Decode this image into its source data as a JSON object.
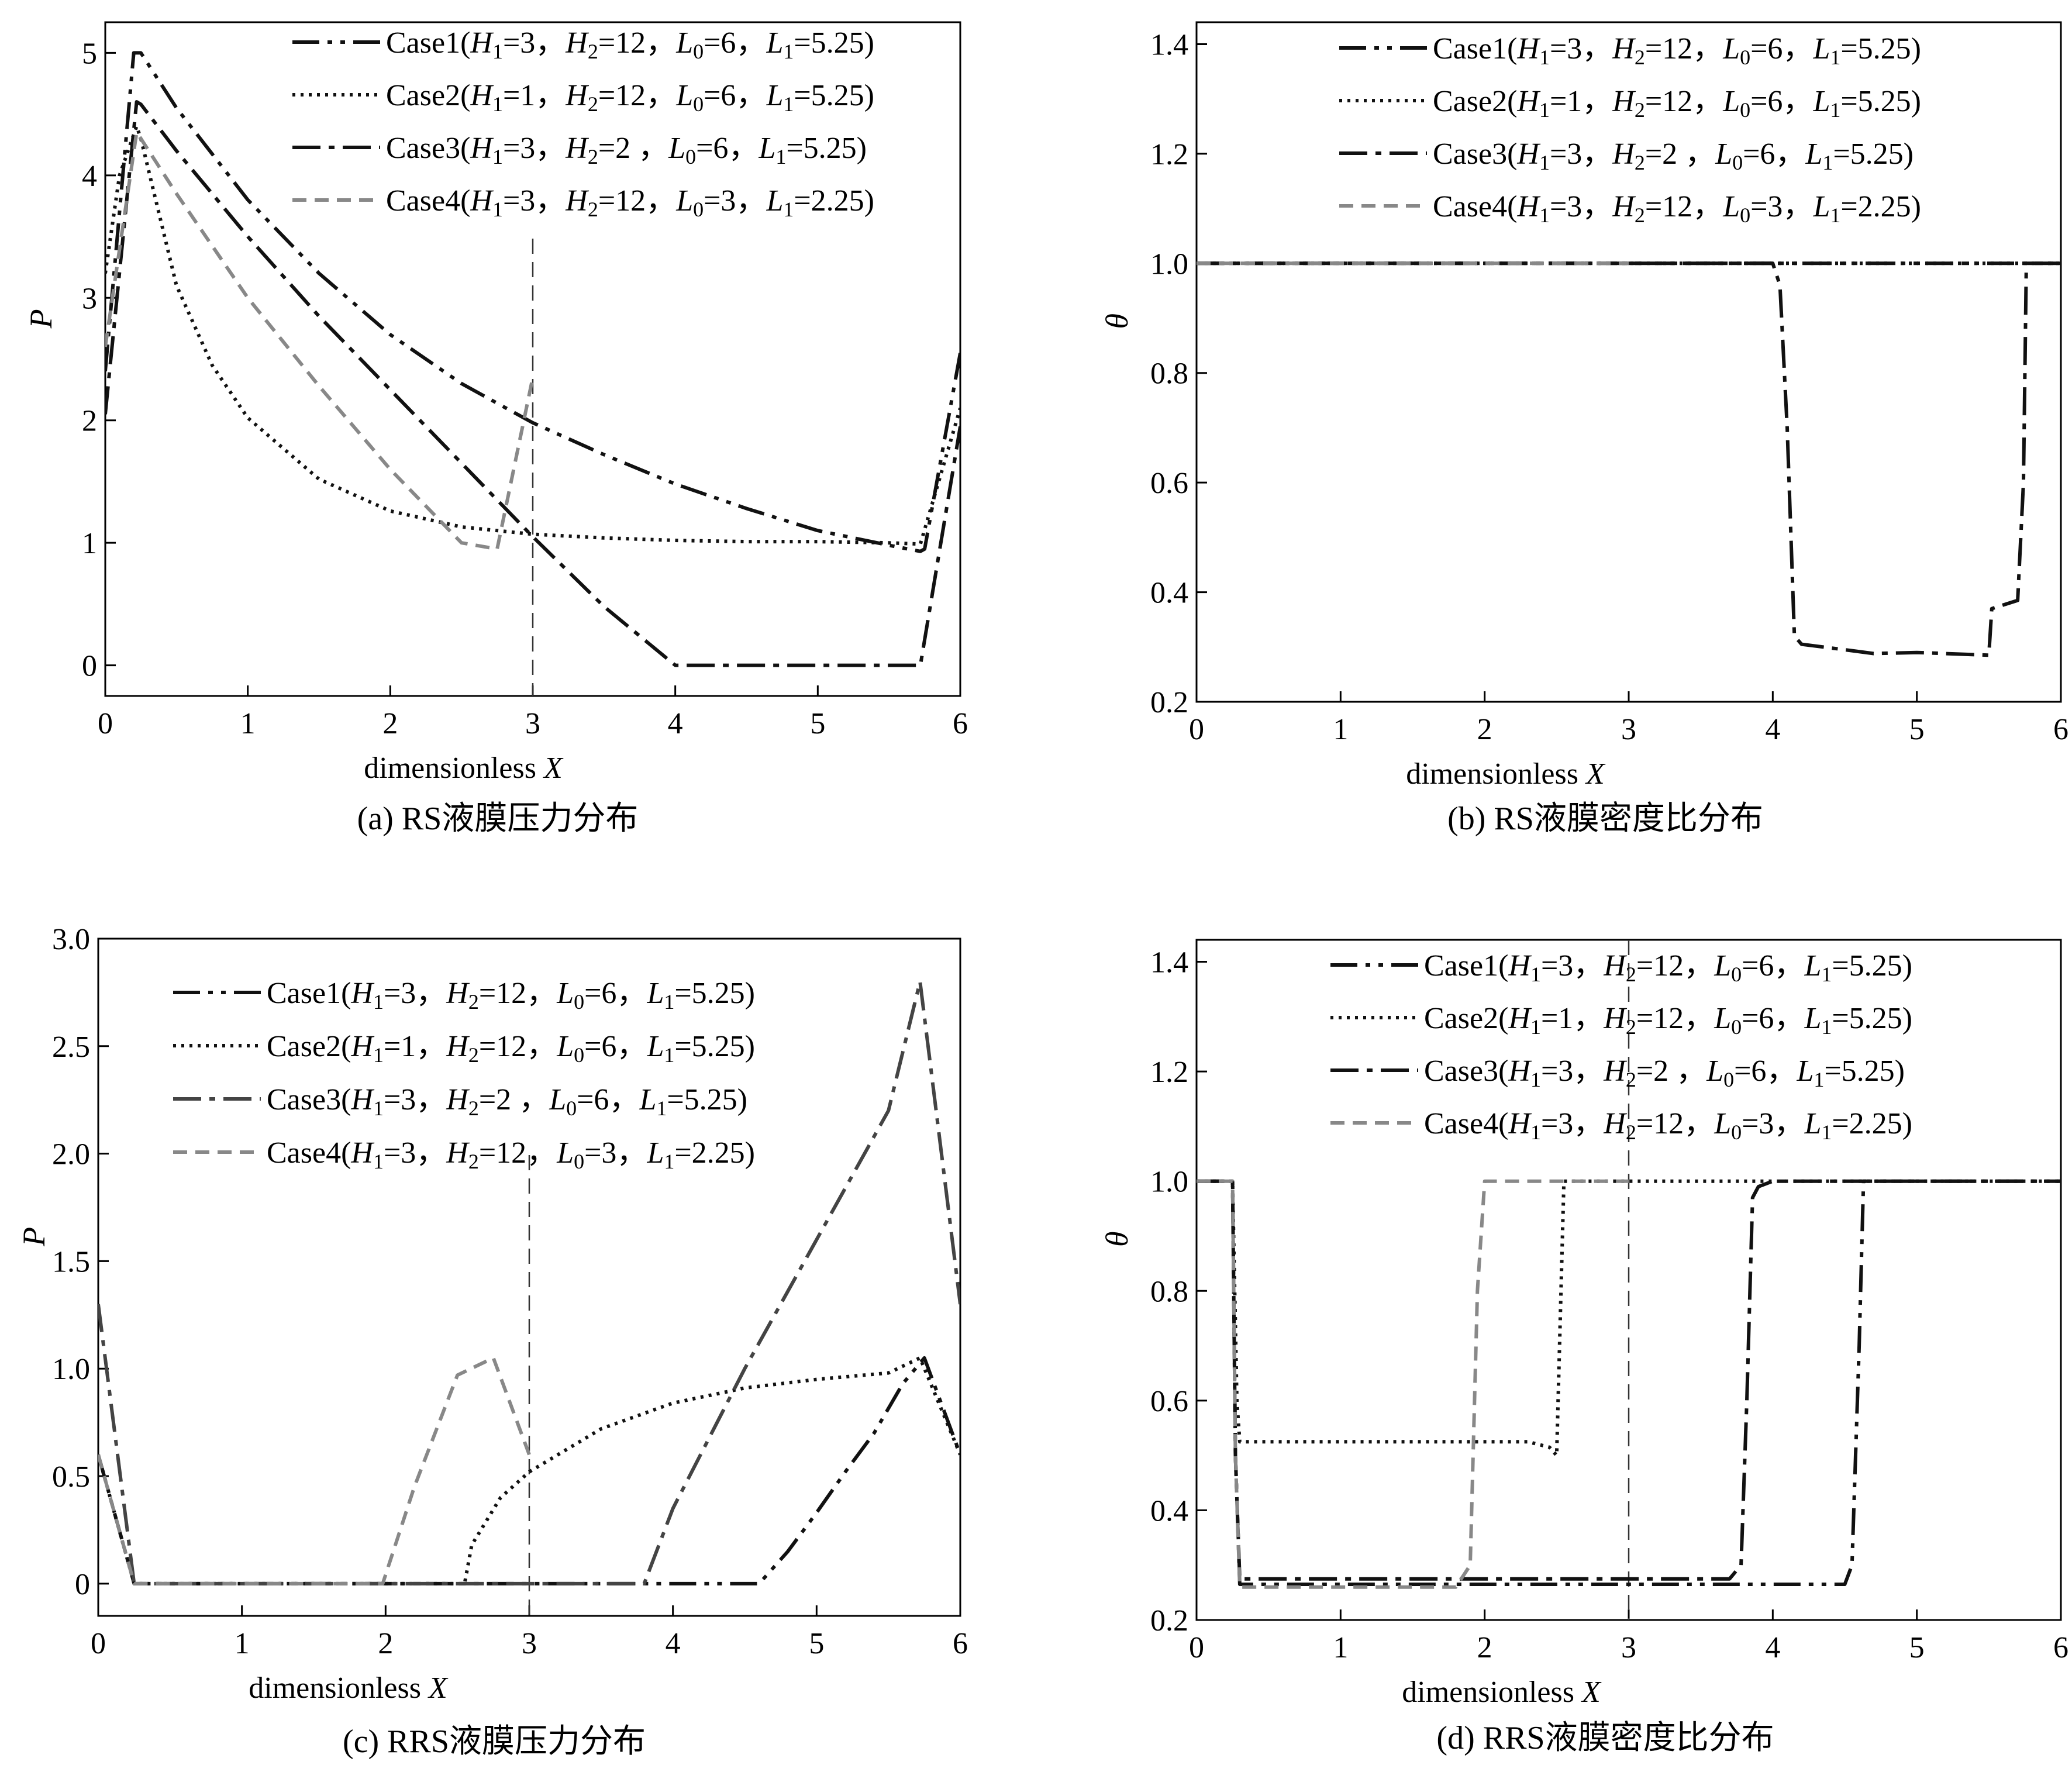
{
  "chart_data": [
    {
      "id": "a",
      "type": "line",
      "caption": "(a) RS液膜压力分布",
      "xlabel": "dimensionless X",
      "ylabel": "P",
      "xlim": [
        0,
        6
      ],
      "ylim": [
        -0.25,
        5.25
      ],
      "xticks": [
        0,
        1,
        2,
        3,
        4,
        5,
        6
      ],
      "yticks": [
        0,
        1,
        2,
        3,
        4,
        5
      ],
      "tick_labels_x": [
        "0",
        "1",
        "2",
        "3",
        "4",
        "5",
        "6"
      ],
      "tick_labels_y": [
        "0",
        "1",
        "2",
        "3",
        "4",
        "5"
      ],
      "vline": 3,
      "legend_position": "top-right",
      "series": [
        {
          "name": "Case1(H1=3，H2=12，L0=6，L1=5.25)",
          "name_rich": [
            "Case1(",
            "H",
            "1",
            "=3，",
            "H",
            "2",
            "=12，",
            "L",
            "0",
            "=6，",
            "L",
            "1",
            "=5.25)"
          ],
          "style": "dashdotdot",
          "color": "#111111",
          "x": [
            0,
            0.2,
            0.25,
            0.5,
            1.0,
            1.5,
            2.0,
            2.5,
            3.0,
            3.5,
            4.0,
            4.5,
            5.0,
            5.5,
            5.72,
            5.75,
            6.0
          ],
          "y": [
            2.4,
            5.0,
            5.0,
            4.55,
            3.8,
            3.2,
            2.7,
            2.3,
            1.98,
            1.72,
            1.48,
            1.28,
            1.1,
            0.98,
            0.93,
            0.95,
            2.55
          ]
        },
        {
          "name": "Case2(H1=1，H2=12，L0=6，L1=5.25)",
          "name_rich": [
            "Case2(",
            "H",
            "1",
            "=1，",
            "H",
            "2",
            "=12，",
            "L",
            "0",
            "=6，",
            "L",
            "1",
            "=5.25)"
          ],
          "style": "dotted",
          "color": "#111111",
          "x": [
            0,
            0.1,
            0.22,
            0.25,
            0.5,
            0.75,
            1.0,
            1.5,
            2.0,
            2.5,
            3.0,
            3.5,
            4.0,
            4.5,
            5.0,
            5.5,
            5.72,
            6.0
          ],
          "y": [
            3.2,
            4.0,
            4.4,
            4.3,
            3.1,
            2.45,
            2.02,
            1.52,
            1.26,
            1.13,
            1.07,
            1.04,
            1.02,
            1.01,
            1.01,
            1.0,
            0.99,
            2.1
          ]
        },
        {
          "name": "Case3(H1=3，H2=2 ，L0=6，L1=5.25)",
          "name_rich": [
            "Case3(",
            "H",
            "1",
            "=3，",
            "H",
            "2",
            "=2 ，",
            "L",
            "0",
            "=6，",
            "L",
            "1",
            "=5.25)"
          ],
          "style": "dashdot",
          "color": "#111111",
          "x": [
            0,
            0.22,
            0.25,
            0.5,
            1.0,
            1.5,
            2.0,
            2.5,
            3.0,
            3.5,
            4.0,
            4.5,
            5.0,
            5.5,
            5.72,
            6.0
          ],
          "y": [
            2.05,
            4.6,
            4.58,
            4.2,
            3.5,
            2.85,
            2.25,
            1.65,
            1.05,
            0.48,
            0.0,
            0.0,
            0.0,
            0.0,
            0.0,
            1.95
          ]
        },
        {
          "name": "Case4(H1=3，H2=12，L0=3，L1=2.25)",
          "name_rich": [
            "Case4(",
            "H",
            "1",
            "=3，",
            "H",
            "2",
            "=12，",
            "L",
            "0",
            "=3，",
            "L",
            "1",
            "=2.25)"
          ],
          "style": "dashed",
          "color": "#888888",
          "x": [
            0,
            0.22,
            0.25,
            0.5,
            1.0,
            1.5,
            2.0,
            2.5,
            2.75,
            3.0
          ],
          "y": [
            2.6,
            4.35,
            4.3,
            3.85,
            3.0,
            2.28,
            1.6,
            1.0,
            0.95,
            2.35
          ]
        }
      ]
    },
    {
      "id": "b",
      "type": "line",
      "caption": "(b) RS液膜密度比分布",
      "xlabel": "dimensionless X",
      "ylabel": "θ",
      "xlim": [
        0,
        6
      ],
      "ylim": [
        0.2,
        1.44
      ],
      "xticks": [
        0,
        1,
        2,
        3,
        4,
        5,
        6
      ],
      "yticks": [
        0.2,
        0.4,
        0.6,
        0.8,
        1.0,
        1.2,
        1.4
      ],
      "tick_labels_x": [
        "0",
        "1",
        "2",
        "3",
        "4",
        "5",
        "6"
      ],
      "tick_labels_y": [
        "0.2",
        "0.4",
        "0.6",
        "0.8",
        "1.0",
        "1.2",
        "1.4"
      ],
      "legend_position": "top-right",
      "series": [
        {
          "name": "Case1(H1=3，H2=12，L0=6，L1=5.25)",
          "name_rich": [
            "Case1(",
            "H",
            "1",
            "=3，",
            "H",
            "2",
            "=12，",
            "L",
            "0",
            "=6，",
            "L",
            "1",
            "=5.25)"
          ],
          "style": "dashdotdot",
          "color": "#111111",
          "x": [
            0,
            6
          ],
          "y": [
            1.0,
            1.0
          ]
        },
        {
          "name": "Case2(H1=1，H2=12，L0=6，L1=5.25)",
          "name_rich": [
            "Case2(",
            "H",
            "1",
            "=1，",
            "H",
            "2",
            "=12，",
            "L",
            "0",
            "=6，",
            "L",
            "1",
            "=5.25)"
          ],
          "style": "dotted",
          "color": "#111111",
          "x": [
            0,
            6
          ],
          "y": [
            1.0,
            1.0
          ]
        },
        {
          "name": "Case3(H1=3，H2=2 ，L0=6，L1=5.25)",
          "name_rich": [
            "Case3(",
            "H",
            "1",
            "=3，",
            "H",
            "2",
            "=2 ，",
            "L",
            "0",
            "=6，",
            "L",
            "1",
            "=5.25)"
          ],
          "style": "dashdot",
          "color": "#111111",
          "x": [
            0,
            4.0,
            4.05,
            4.1,
            4.15,
            4.2,
            4.5,
            4.7,
            5.0,
            5.4,
            5.5,
            5.52,
            5.7,
            5.74,
            5.76,
            6.0
          ],
          "y": [
            1.0,
            1.0,
            0.96,
            0.7,
            0.32,
            0.305,
            0.295,
            0.288,
            0.29,
            0.286,
            0.285,
            0.37,
            0.385,
            0.6,
            1.0,
            1.0
          ]
        },
        {
          "name": "Case4(H1=3，H2=12，L0=3，L1=2.25)",
          "name_rich": [
            "Case4(",
            "H",
            "1",
            "=3，",
            "H",
            "2",
            "=12，",
            "L",
            "0",
            "=3，",
            "L",
            "1",
            "=2.25)"
          ],
          "style": "dashed",
          "color": "#888888",
          "x": [
            0,
            3.0
          ],
          "y": [
            1.0,
            1.0
          ]
        }
      ]
    },
    {
      "id": "c",
      "type": "line",
      "caption": "(c) RRS液膜压力分布",
      "xlabel": "dimensionless X",
      "ylabel": "P",
      "xlim": [
        0,
        6
      ],
      "ylim": [
        -0.15,
        3.0
      ],
      "xticks": [
        0,
        1,
        2,
        3,
        4,
        5,
        6
      ],
      "yticks": [
        0,
        0.5,
        1.0,
        1.5,
        2.0,
        2.5,
        3.0
      ],
      "tick_labels_x": [
        "0",
        "1",
        "2",
        "3",
        "4",
        "5",
        "6"
      ],
      "tick_labels_y": [
        "0",
        "0.5",
        "1.0",
        "1.5",
        "2.0",
        "2.5",
        "3.0"
      ],
      "vline": 3,
      "legend_position": "top-left",
      "series": [
        {
          "name": "Case1(H1=3，H2=12，L0=6，L1=5.25)",
          "name_rich": [
            "Case1(",
            "H",
            "1",
            "=3，",
            "H",
            "2",
            "=12，",
            "L",
            "0",
            "=6，",
            "L",
            "1",
            "=5.25)"
          ],
          "style": "dashdotdot",
          "color": "#111111",
          "x": [
            0,
            0.25,
            1.0,
            2.0,
            3.0,
            4.0,
            4.6,
            4.8,
            5.0,
            5.2,
            5.4,
            5.6,
            5.75,
            6.0
          ],
          "y": [
            0.6,
            0.0,
            0.0,
            0.0,
            0.0,
            0.0,
            0.0,
            0.15,
            0.33,
            0.52,
            0.7,
            0.93,
            1.05,
            0.6
          ]
        },
        {
          "name": "Case2(H1=1，H2=12，L0=6，L1=5.25)",
          "name_rich": [
            "Case2(",
            "H",
            "1",
            "=1，",
            "H",
            "2",
            "=12，",
            "L",
            "0",
            "=6，",
            "L",
            "1",
            "=5.25)"
          ],
          "style": "dotted",
          "color": "#111111",
          "x": [
            0,
            0.25,
            1.0,
            2.0,
            2.55,
            2.6,
            2.8,
            3.0,
            3.5,
            4.0,
            4.5,
            5.0,
            5.5,
            5.72,
            6.0
          ],
          "y": [
            0.6,
            0.0,
            0.0,
            0.0,
            0.0,
            0.18,
            0.4,
            0.52,
            0.72,
            0.84,
            0.91,
            0.95,
            0.98,
            1.05,
            0.6
          ]
        },
        {
          "name": "Case3(H1=3，H2=2 ，L0=6，L1=5.25)",
          "name_rich": [
            "Case3(",
            "H",
            "1",
            "=3，",
            "H",
            "2",
            "=2 ，",
            "L",
            "0",
            "=6，",
            "L",
            "1",
            "=5.25)"
          ],
          "style": "dashdot",
          "color": "#444444",
          "x": [
            0,
            0.25,
            1.0,
            2.0,
            3.0,
            3.8,
            4.0,
            4.5,
            5.0,
            5.5,
            5.72,
            6.0
          ],
          "y": [
            1.3,
            0.0,
            0.0,
            0.0,
            0.0,
            0.0,
            0.35,
            1.0,
            1.6,
            2.2,
            2.8,
            1.3
          ]
        },
        {
          "name": "Case4(H1=3，H2=12，L0=3，L1=2.25)",
          "name_rich": [
            "Case4(",
            "H",
            "1",
            "=3，",
            "H",
            "2",
            "=12，",
            "L",
            "0",
            "=3，",
            "L",
            "1",
            "=2.25)"
          ],
          "style": "dashed",
          "color": "#888888",
          "x": [
            0,
            0.25,
            1.0,
            1.98,
            2.2,
            2.5,
            2.75,
            3.0
          ],
          "y": [
            0.6,
            0.0,
            0.0,
            0.0,
            0.45,
            0.97,
            1.05,
            0.6
          ]
        }
      ]
    },
    {
      "id": "d",
      "type": "line",
      "caption": "(d) RRS液膜密度比分布",
      "xlabel": "dimensionless X",
      "ylabel": "θ",
      "xlim": [
        0,
        6
      ],
      "ylim": [
        0.2,
        1.44
      ],
      "xticks": [
        0,
        1,
        2,
        3,
        4,
        5,
        6
      ],
      "yticks": [
        0.2,
        0.4,
        0.6,
        0.8,
        1.0,
        1.2,
        1.4
      ],
      "tick_labels_x": [
        "0",
        "1",
        "2",
        "3",
        "4",
        "5",
        "6"
      ],
      "tick_labels_y": [
        "0.2",
        "0.4",
        "0.6",
        "0.8",
        "1.0",
        "1.2",
        "1.4"
      ],
      "vline": 3,
      "legend_position": "top-right",
      "series": [
        {
          "name": "Case1(H1=3，H2=12，L0=6，L1=5.25)",
          "name_rich": [
            "Case1(",
            "H",
            "1",
            "=3，",
            "H",
            "2",
            "=12，",
            "L",
            "0",
            "=6，",
            "L",
            "1",
            "=5.25)"
          ],
          "style": "dashdotdot",
          "color": "#111111",
          "x": [
            0,
            0.25,
            0.27,
            0.3,
            1.0,
            2.0,
            3.0,
            4.0,
            4.5,
            4.55,
            4.6,
            4.63,
            5.0,
            6.0
          ],
          "y": [
            1.0,
            1.0,
            0.5,
            0.265,
            0.265,
            0.265,
            0.265,
            0.265,
            0.265,
            0.3,
            0.7,
            1.0,
            1.0,
            1.0
          ]
        },
        {
          "name": "Case2(H1=1，H2=12，L0=6，L1=5.25)",
          "name_rich": [
            "Case2(",
            "H",
            "1",
            "=1，",
            "H",
            "2",
            "=12，",
            "L",
            "0",
            "=6，",
            "L",
            "1",
            "=5.25)"
          ],
          "style": "dotted",
          "color": "#111111",
          "x": [
            0,
            0.25,
            0.28,
            0.3,
            1.0,
            2.0,
            2.3,
            2.45,
            2.5,
            2.53,
            2.55,
            3.0,
            6.0
          ],
          "y": [
            1.0,
            1.0,
            0.6,
            0.525,
            0.525,
            0.525,
            0.525,
            0.515,
            0.5,
            0.8,
            1.0,
            1.0,
            1.0
          ]
        },
        {
          "name": "Case3(H1=3，H2=2 ，L0=6，L1=5.25)",
          "name_rich": [
            "Case3(",
            "H",
            "1",
            "=3，",
            "H",
            "2",
            "=2 ，",
            "L",
            "0",
            "=6，",
            "L",
            "1",
            "=5.25)"
          ],
          "style": "dashdot",
          "color": "#111111",
          "x": [
            0,
            0.25,
            0.27,
            0.3,
            1.0,
            2.0,
            3.0,
            3.7,
            3.78,
            3.82,
            3.86,
            3.9,
            4.0,
            6.0
          ],
          "y": [
            1.0,
            1.0,
            0.5,
            0.275,
            0.275,
            0.275,
            0.275,
            0.275,
            0.3,
            0.6,
            0.97,
            0.99,
            1.0,
            1.0
          ]
        },
        {
          "name": "Case4(H1=3，H2=12，L0=3，L1=2.25)",
          "name_rich": [
            "Case4(",
            "H",
            "1",
            "=3，",
            "H",
            "2",
            "=12，",
            "L",
            "0",
            "=3，",
            "L",
            "1",
            "=2.25)"
          ],
          "style": "dashed",
          "color": "#888888",
          "x": [
            0,
            0.25,
            0.27,
            0.3,
            1.0,
            1.8,
            1.9,
            1.95,
            2.0,
            3.0
          ],
          "y": [
            1.0,
            1.0,
            0.5,
            0.26,
            0.26,
            0.26,
            0.3,
            0.8,
            1.0,
            1.0
          ]
        }
      ]
    }
  ]
}
